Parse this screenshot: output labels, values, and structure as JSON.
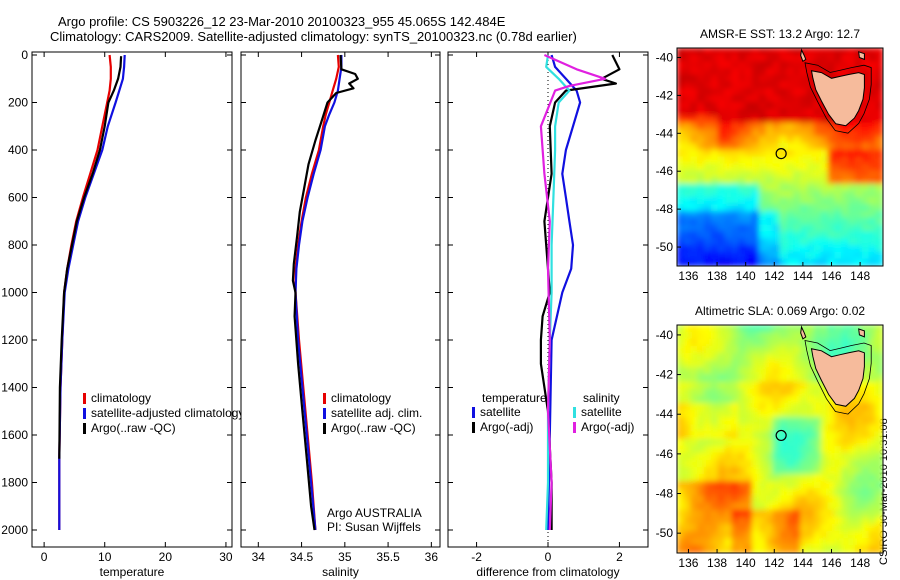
{
  "header": {
    "title1": "Argo profile: CS 5903226_12 23-Mar-2010 20100323_955 45.065S 142.484E",
    "title2": "Climatology: CARS2009. Satellite-adjusted climatology: synTS_20100323.nc (0.78d earlier)"
  },
  "stamp": "CSIRO 30-Mar-2010 10:31:08",
  "colors": {
    "red": "#e60000",
    "blue": "#1010e0",
    "black": "#000000",
    "cyan": "#30e0e0",
    "magenta": "#e020e0",
    "land": "#f6bb9c"
  },
  "chart_data": [
    {
      "type": "line",
      "id": "temperature",
      "xlabel": "temperature",
      "ylabel": "",
      "xlim": [
        -2,
        31
      ],
      "ylim": [
        2050,
        0
      ],
      "xticks": [
        0,
        10,
        20,
        30
      ],
      "yticks": [
        0,
        200,
        400,
        600,
        800,
        1000,
        1200,
        1400,
        1600,
        1800,
        2000
      ],
      "legend": [
        "climatology",
        "satellite-adjusted climatology",
        "Argo(..raw -QC)"
      ],
      "series": [
        {
          "name": "climatology",
          "color": "red",
          "x": [
            10.8,
            11.0,
            11.0,
            10.8,
            10.4,
            9.6,
            8.8,
            7.6,
            6.4,
            5.3,
            4.5,
            3.8,
            3.3,
            3.0,
            2.7,
            2.5,
            2.5
          ],
          "y": [
            0,
            50,
            100,
            150,
            200,
            300,
            400,
            500,
            600,
            700,
            800,
            900,
            1000,
            1200,
            1400,
            1700,
            2000
          ]
        },
        {
          "name": "satellite-adjusted climatology",
          "color": "blue",
          "x": [
            13.3,
            13.2,
            13.0,
            12.4,
            11.8,
            10.5,
            9.6,
            8.2,
            6.8,
            5.6,
            4.8,
            4.0,
            3.4,
            3.0,
            2.7,
            2.5,
            2.5
          ],
          "y": [
            0,
            50,
            100,
            150,
            200,
            300,
            400,
            500,
            600,
            700,
            800,
            900,
            1000,
            1200,
            1400,
            1700,
            2000
          ]
        },
        {
          "name": "Argo(..raw -QC)",
          "color": "black",
          "x": [
            12.7,
            12.6,
            12.2,
            11.5,
            10.6,
            10.0,
            9.2,
            8.0,
            6.6,
            5.4,
            4.6,
            3.8,
            3.3,
            2.9,
            2.6,
            2.5
          ],
          "y": [
            5,
            50,
            100,
            150,
            200,
            300,
            400,
            500,
            600,
            700,
            800,
            900,
            1000,
            1200,
            1400,
            1700
          ]
        }
      ]
    },
    {
      "type": "line",
      "id": "salinity",
      "xlabel": "salinity",
      "ylabel": "",
      "xlim": [
        33.8,
        36.1
      ],
      "ylim": [
        2050,
        0
      ],
      "xticks": [
        34,
        34.5,
        35,
        35.5,
        36
      ],
      "yticks": [],
      "legend": [
        "climatology",
        "satellite adj. clim.",
        "Argo(..raw -QC)"
      ],
      "annotation": [
        "Argo AUSTRALIA",
        "PI: Susan Wijffels"
      ],
      "series": [
        {
          "name": "climatology",
          "color": "red",
          "x": [
            34.92,
            34.93,
            34.9,
            34.86,
            34.82,
            34.78,
            34.75,
            34.7,
            34.62,
            34.55,
            34.5,
            34.46,
            34.43,
            34.43,
            34.47,
            34.52,
            34.57,
            34.62,
            34.66
          ],
          "y": [
            0,
            50,
            100,
            150,
            200,
            250,
            300,
            400,
            500,
            600,
            700,
            800,
            900,
            1000,
            1200,
            1400,
            1600,
            1800,
            2000
          ]
        },
        {
          "name": "satellite adj. clim.",
          "color": "blue",
          "x": [
            34.96,
            34.96,
            34.94,
            34.92,
            34.88,
            34.82,
            34.77,
            34.72,
            34.64,
            34.57,
            34.51,
            34.47,
            34.44,
            34.43,
            34.46,
            34.51,
            34.56,
            34.61,
            34.66
          ],
          "y": [
            0,
            50,
            100,
            150,
            200,
            250,
            300,
            400,
            500,
            600,
            700,
            800,
            900,
            1000,
            1200,
            1400,
            1600,
            1800,
            2000
          ]
        },
        {
          "name": "Argo(..raw -QC)",
          "color": "black",
          "x": [
            34.95,
            34.96,
            35.12,
            35.15,
            35.05,
            35.1,
            34.9,
            34.8,
            34.73,
            34.66,
            34.58,
            34.53,
            34.48,
            34.45,
            34.41,
            34.4,
            34.43,
            34.42,
            34.46,
            34.51,
            34.56,
            34.61,
            34.65
          ],
          "y": [
            0,
            60,
            80,
            100,
            120,
            140,
            160,
            200,
            280,
            360,
            460,
            560,
            660,
            760,
            880,
            950,
            1000,
            1100,
            1300,
            1500,
            1700,
            1900,
            2000
          ]
        }
      ]
    },
    {
      "type": "line",
      "id": "difference",
      "xlabel": "difference from climatology",
      "ylabel": "",
      "xlim": [
        -2.8,
        2.8
      ],
      "ylim": [
        2050,
        0
      ],
      "xticks": [
        -2,
        0,
        2
      ],
      "yticks": [],
      "legend_left_title": "temperature",
      "legend_right_title": "salinity",
      "legend_left": [
        "satellite",
        "Argo(-adj)"
      ],
      "legend_right": [
        "satellite",
        "Argo(-adj)"
      ],
      "series": [
        {
          "name": "temperature satellite",
          "color": "blue",
          "x": [
            0.1,
            0.2,
            0.5,
            0.8,
            0.9,
            0.7,
            0.5,
            0.4,
            0.5,
            0.6,
            0.7,
            0.65,
            0.4,
            0.1,
            0.05,
            0.0
          ],
          "y": [
            0,
            50,
            100,
            150,
            200,
            300,
            400,
            500,
            600,
            700,
            800,
            900,
            1000,
            1200,
            1600,
            2000
          ]
        },
        {
          "name": "temperature Argo(-adj)",
          "color": "black",
          "x": [
            1.8,
            2.0,
            1.5,
            1.9,
            0.5,
            0.2,
            0.05,
            0.1,
            -0.1,
            0.0,
            0.05,
            -0.15,
            -0.2,
            -0.2,
            0.0,
            0.1,
            0.1
          ],
          "y": [
            0,
            60,
            100,
            120,
            150,
            200,
            300,
            500,
            700,
            900,
            1000,
            1100,
            1200,
            1300,
            1500,
            1800,
            2000
          ]
        },
        {
          "name": "salinity satellite",
          "color": "cyan",
          "x": [
            0.0,
            -0.05,
            0.3,
            0.6,
            0.3,
            0.2,
            0.2,
            0.15,
            0.1,
            0.1,
            0.05,
            0.0,
            0.0,
            -0.05
          ],
          "y": [
            0,
            50,
            100,
            150,
            200,
            300,
            400,
            600,
            800,
            1000,
            1200,
            1500,
            1800,
            2000
          ]
        },
        {
          "name": "salinity Argo(-adj)",
          "color": "magenta",
          "x": [
            -0.1,
            0.8,
            1.6,
            0.6,
            0.2,
            -0.2,
            -0.1,
            0.05,
            0.0,
            0.05,
            0.0,
            0.1,
            0.05
          ],
          "y": [
            0,
            60,
            100,
            130,
            150,
            300,
            500,
            700,
            900,
            1200,
            1500,
            1800,
            2000
          ]
        }
      ]
    },
    {
      "type": "heatmap",
      "id": "sst",
      "title": "AMSR-E SST: 13.2 Argo: 12.7",
      "xlim": [
        135.2,
        149.6
      ],
      "ylim": [
        -51.0,
        -39.5
      ],
      "xticks": [
        136,
        138,
        140,
        142,
        144,
        146,
        148
      ],
      "yticks": [
        -40,
        -42,
        -44,
        -46,
        -48,
        -50
      ],
      "marker": {
        "lon": 142.48,
        "lat": -45.07
      }
    },
    {
      "type": "heatmap",
      "id": "sla",
      "title": "Altimetric SLA: 0.069 Argo: 0.02",
      "xlim": [
        135.2,
        149.6
      ],
      "ylim": [
        -51.0,
        -39.5
      ],
      "xticks": [
        136,
        138,
        140,
        142,
        144,
        146,
        148
      ],
      "yticks": [
        -40,
        -42,
        -44,
        -46,
        -48,
        -50
      ],
      "marker": {
        "lon": 142.48,
        "lat": -45.07
      }
    }
  ]
}
